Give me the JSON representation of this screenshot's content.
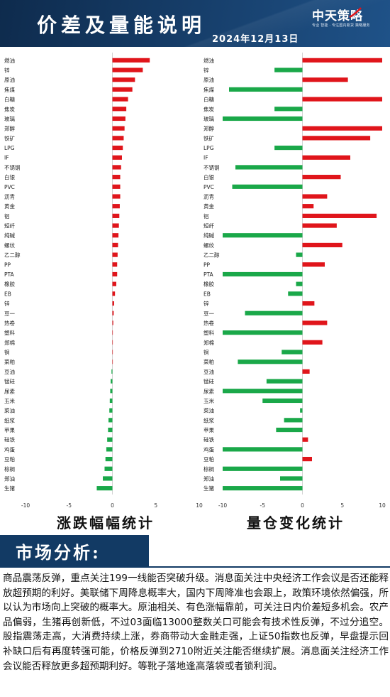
{
  "header": {
    "title": "价差及量能说明",
    "date": "2024年12月13日",
    "logo_text": "中天策略",
    "logo_sub": "专业 智能 · 专注国内期货 策略服务"
  },
  "colors": {
    "positive": "#e0151b",
    "negative": "#1aa849",
    "header_bg": "#14355c"
  },
  "chart_data": [
    {
      "type": "bar",
      "orientation": "horizontal",
      "title": "涨跌幅幅统计",
      "categories": [
        "燃油",
        "锌",
        "原油",
        "焦煤",
        "白糖",
        "焦炭",
        "玻璃",
        "郑醇",
        "铁矿",
        "LPG",
        "IF",
        "不锈钢",
        "白银",
        "PVC",
        "沥青",
        "黄金",
        "铝",
        "短纤",
        "纯碱",
        "螺纹",
        "乙二醇",
        "PP",
        "PTA",
        "橡胶",
        "EB",
        "锌",
        "豆一",
        "热卷",
        "塑料",
        "郑棉",
        "铜",
        "菜粕",
        "豆油",
        "锰硅",
        "尿素",
        "玉米",
        "菜油",
        "纸浆",
        "苹果",
        "硅铁",
        "鸡蛋",
        "豆粕",
        "棕榈",
        "郑油",
        "生猪"
      ],
      "values": [
        4.3,
        3.5,
        2.6,
        2.3,
        1.8,
        1.6,
        1.5,
        1.4,
        1.3,
        1.2,
        1.1,
        1.0,
        0.9,
        0.9,
        0.9,
        0.85,
        0.8,
        0.75,
        0.7,
        0.65,
        0.6,
        0.55,
        0.55,
        0.45,
        0.3,
        0.2,
        0.15,
        0.1,
        0.05,
        0.0,
        0.0,
        0.0,
        -0.1,
        -0.2,
        -0.25,
        -0.3,
        -0.35,
        -0.45,
        -0.5,
        -0.6,
        -0.7,
        -0.8,
        -0.9,
        -1.1,
        -1.8
      ],
      "xlim": [
        -10,
        10
      ],
      "xticks": [
        "-10",
        "-5",
        "0",
        "5",
        "10"
      ]
    },
    {
      "type": "bar",
      "orientation": "horizontal",
      "title": "量仓变化统计",
      "categories": [
        "燃油",
        "锌",
        "原油",
        "焦煤",
        "白糖",
        "焦炭",
        "玻璃",
        "郑醇",
        "铁矿",
        "LPG",
        "IF",
        "不锈钢",
        "白银",
        "PVC",
        "沥青",
        "黄金",
        "铝",
        "短纤",
        "纯碱",
        "螺纹",
        "乙二醇",
        "PP",
        "PTA",
        "橡胶",
        "EB",
        "锌",
        "豆一",
        "热卷",
        "塑料",
        "郑棉",
        "铜",
        "菜粕",
        "豆油",
        "锰硅",
        "尿素",
        "玉米",
        "菜油",
        "纸浆",
        "苹果",
        "硅铁",
        "鸡蛋",
        "豆粕",
        "棕榈",
        "郑油",
        "生猪"
      ],
      "values": [
        10,
        -3.5,
        5.7,
        -9.2,
        10,
        -3.5,
        -10,
        10,
        8.5,
        -3.5,
        6,
        -8.4,
        4.8,
        -8.8,
        3.1,
        1.4,
        9.3,
        4.3,
        -10,
        5,
        -0.8,
        2.8,
        -10,
        -0.8,
        -1.8,
        1.5,
        -7.2,
        3.1,
        -10,
        2.5,
        -2.6,
        -8.1,
        0.9,
        -4.5,
        -10,
        -5,
        -0.3,
        -2.3,
        -3.3,
        0.7,
        -10,
        1.2,
        -10,
        -2.8,
        -10
      ],
      "xlim": [
        -10,
        10
      ],
      "xticks": [
        "-10",
        "-5",
        "0",
        "5",
        "10"
      ]
    }
  ],
  "market": {
    "title": "市场分析:",
    "text": "商品震荡反弹，重点关注199一线能否突破升级。消息面关注中央经济工作会议是否还能释放超预期的利好。美联储下周降息概率大，国内下周降准也会跟上，政策环境依然偏强，所以认为市场向上突破的概率大。原油相关、有色涨幅靠前，可关注日内价差短多机会。农产品偏弱，生猪再创新低，不过03面临13000整数关口可能会有技术性反弹，不过分追空。股指震荡走高，大消费持续上涨，券商带动大金融走强，上证50指数也反弹，早盘提示回补缺口后有再度转强可能，价格反弹到2710附近关注能否继续扩展。消息面关注经济工作会议能否释放更多超预期利好。等靴子落地逢高落袋或者锁利润。"
  }
}
